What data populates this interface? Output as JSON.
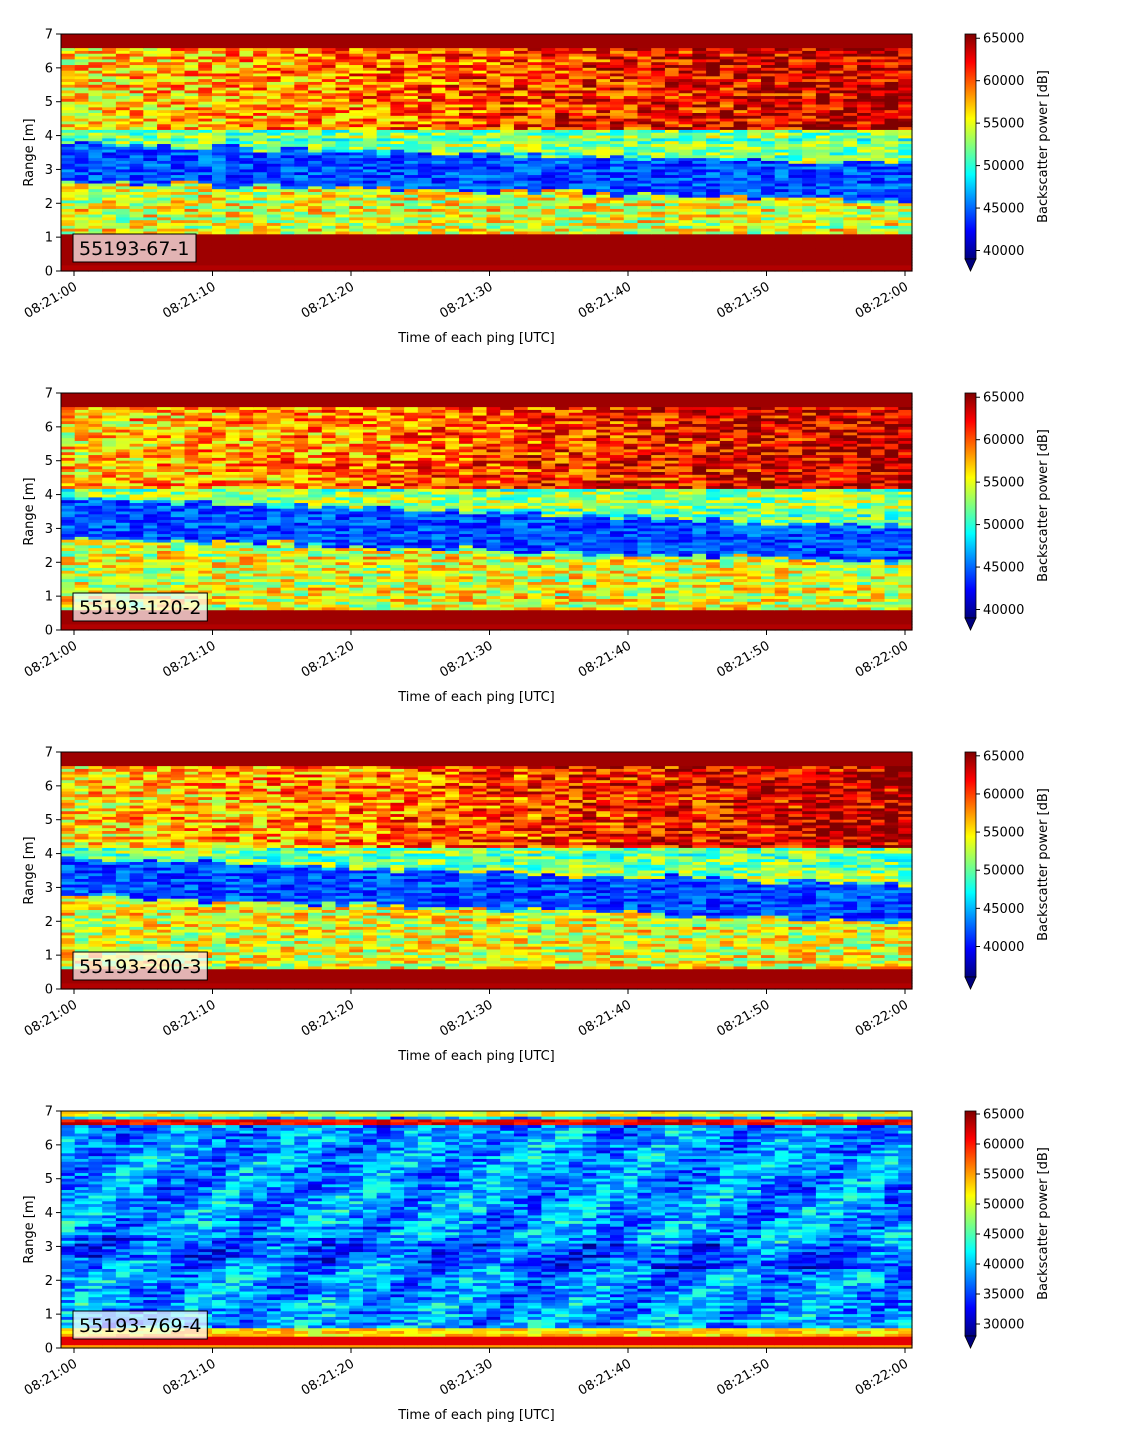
{
  "colors": {
    "colormap": "jet",
    "jet_stops": [
      "#00007f",
      "#0000ff",
      "#007fff",
      "#00ffff",
      "#7fff7f",
      "#ffff00",
      "#ff7f00",
      "#ff0000",
      "#7f0000"
    ],
    "label_box_border": "#000000"
  },
  "chart_data": [
    {
      "type": "heatmap",
      "label": "55193-67-1",
      "xlabel": "Time of each ping [UTC]",
      "ylabel": "Range [m]",
      "colorbar_label": "Backscatter power [dB]",
      "x_range": [
        "08:21:00",
        "08:22:00"
      ],
      "x_ticks": [
        "08:21:00",
        "08:21:10",
        "08:21:20",
        "08:21:30",
        "08:21:40",
        "08:21:50",
        "08:22:00"
      ],
      "ylim": [
        0,
        7
      ],
      "y_ticks": [
        "0",
        "1",
        "2",
        "3",
        "4",
        "5",
        "6",
        "7"
      ],
      "color_range": [
        39000,
        65500
      ],
      "colorbar_ticks": [
        "40000",
        "45000",
        "50000",
        "55000",
        "60000",
        "65000"
      ],
      "colorbar_tick_values": [
        40000,
        45000,
        50000,
        55000,
        60000,
        65000
      ],
      "colorbar_extend": "min",
      "pattern": "high-surface"
    },
    {
      "type": "heatmap",
      "label": "55193-120-2",
      "xlabel": "Time of each ping [UTC]",
      "ylabel": "Range [m]",
      "colorbar_label": "Backscatter power [dB]",
      "x_range": [
        "08:21:00",
        "08:22:00"
      ],
      "x_ticks": [
        "08:21:00",
        "08:21:10",
        "08:21:20",
        "08:21:30",
        "08:21:40",
        "08:21:50",
        "08:22:00"
      ],
      "ylim": [
        0,
        7
      ],
      "y_ticks": [
        "0",
        "1",
        "2",
        "3",
        "4",
        "5",
        "6",
        "7"
      ],
      "color_range": [
        39000,
        65500
      ],
      "colorbar_ticks": [
        "40000",
        "45000",
        "50000",
        "55000",
        "60000",
        "65000"
      ],
      "colorbar_tick_values": [
        40000,
        45000,
        50000,
        55000,
        60000,
        65000
      ],
      "colorbar_extend": "min",
      "pattern": "mid"
    },
    {
      "type": "heatmap",
      "label": "55193-200-3",
      "xlabel": "Time of each ping [UTC]",
      "ylabel": "Range [m]",
      "colorbar_label": "Backscatter power [dB]",
      "x_range": [
        "08:21:00",
        "08:22:00"
      ],
      "x_ticks": [
        "08:21:00",
        "08:21:10",
        "08:21:20",
        "08:21:30",
        "08:21:40",
        "08:21:50",
        "08:22:00"
      ],
      "ylim": [
        0,
        7
      ],
      "y_ticks": [
        "0",
        "1",
        "2",
        "3",
        "4",
        "5",
        "6",
        "7"
      ],
      "color_range": [
        36000,
        65500
      ],
      "colorbar_ticks": [
        "40000",
        "45000",
        "50000",
        "55000",
        "60000",
        "65000"
      ],
      "colorbar_tick_values": [
        40000,
        45000,
        50000,
        55000,
        60000,
        65000
      ],
      "colorbar_extend": "min",
      "pattern": "mid"
    },
    {
      "type": "heatmap",
      "label": "55193-769-4",
      "xlabel": "Time of each ping [UTC]",
      "ylabel": "Range [m]",
      "colorbar_label": "Backscatter power [dB]",
      "x_range": [
        "08:21:00",
        "08:22:00"
      ],
      "x_ticks": [
        "08:21:00",
        "08:21:10",
        "08:21:20",
        "08:21:30",
        "08:21:40",
        "08:21:50",
        "08:22:00"
      ],
      "ylim": [
        0,
        7
      ],
      "y_ticks": [
        "0",
        "1",
        "2",
        "3",
        "4",
        "5",
        "6",
        "7"
      ],
      "color_range": [
        28000,
        65500
      ],
      "colorbar_ticks": [
        "30000",
        "35000",
        "40000",
        "45000",
        "50000",
        "55000",
        "60000",
        "65000"
      ],
      "colorbar_tick_values": [
        30000,
        35000,
        40000,
        45000,
        50000,
        55000,
        60000,
        65000
      ],
      "colorbar_extend": "min",
      "pattern": "low"
    }
  ]
}
